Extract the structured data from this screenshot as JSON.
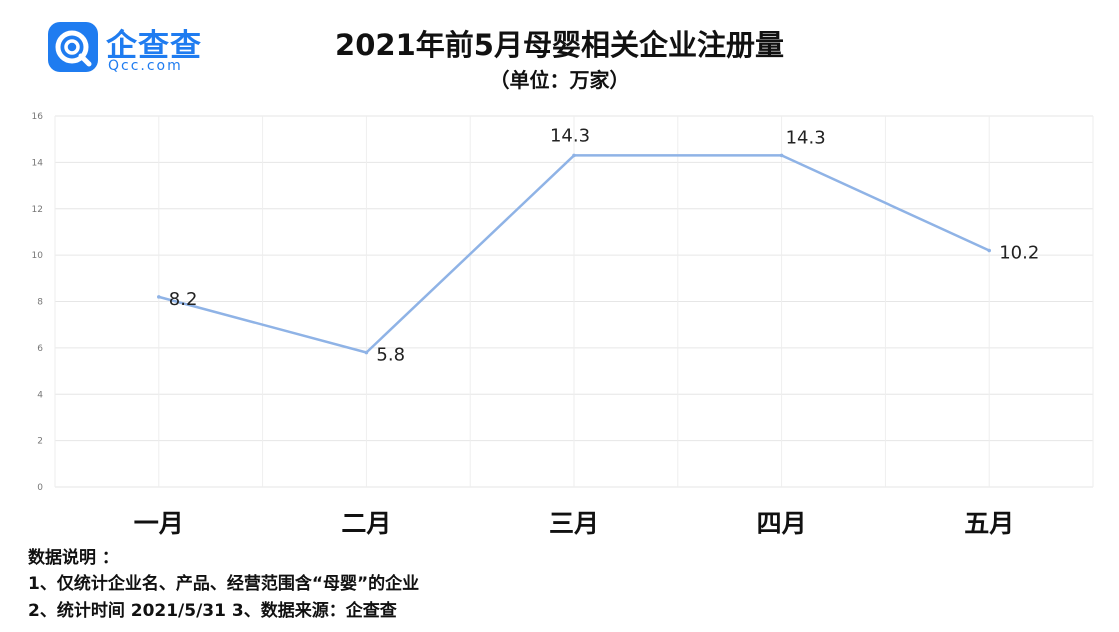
{
  "logo": {
    "name": "企查查",
    "domain": "Qcc.com",
    "icon": "qcc-logo-icon",
    "color": "#1f7cf0"
  },
  "chart_data": {
    "type": "line",
    "title": "2021年前5月母婴相关企业注册量",
    "subtitle": "（单位：万家）",
    "categories": [
      "一月",
      "二月",
      "三月",
      "四月",
      "五月"
    ],
    "values": [
      8.2,
      5.8,
      14.3,
      14.3,
      10.2
    ],
    "data_labels": [
      "8.2",
      "5.8",
      "14.3",
      "14.3",
      "10.2"
    ],
    "yticks": [
      "0",
      "2",
      "4",
      "6",
      "8",
      "10",
      "12",
      "14",
      "16"
    ],
    "ylim": [
      0,
      16
    ],
    "grid": true,
    "line_color": "#8fb3e6"
  },
  "notes": {
    "heading": "数据说明 ：",
    "line1": "1、仅统计企业名、产品、经营范围含“母婴”的企业",
    "line2": "2、统计时间 2021/5/31     3、数据来源：企查查"
  }
}
